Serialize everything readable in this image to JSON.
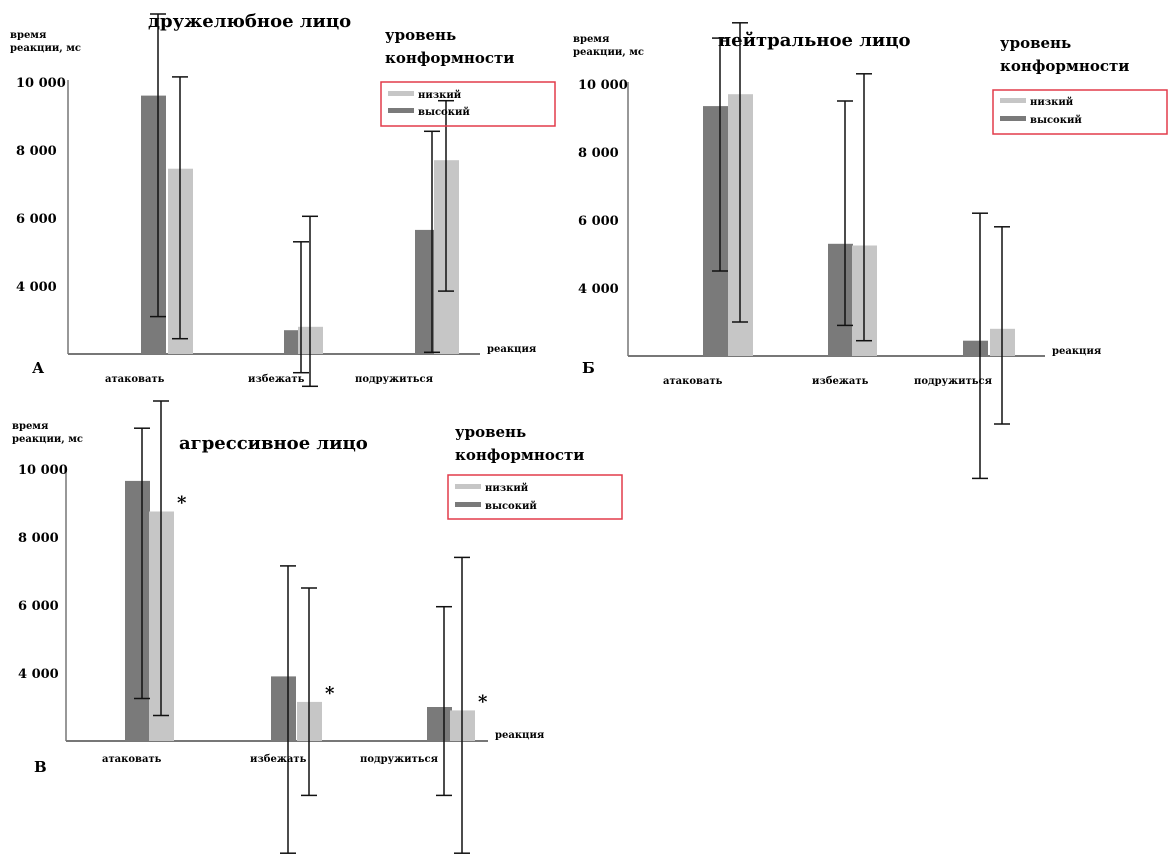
{
  "colors": {
    "high": "#7a7a7a",
    "low": "#c6c6c6",
    "axis": "#777777",
    "error": "#111111",
    "legend_border": "#e23b4a"
  },
  "chart_data": [
    {
      "type": "bar",
      "panel_letter": "А",
      "title": "дружелюбное лицо",
      "ylabel": [
        "время",
        "реакции, мс"
      ],
      "xlabel": "реакция",
      "categories": [
        "атаковать",
        "избежать",
        "подружиться"
      ],
      "yticks": [
        "10 000",
        "8 000",
        "6 000",
        "4 000"
      ],
      "ytick_values": [
        10000,
        8000,
        6000,
        4000
      ],
      "ylim": [
        2000,
        10000
      ],
      "legend": {
        "title": [
          "уровень",
          "конформности"
        ],
        "position": "top-right"
      },
      "series": [
        {
          "name": "высокий",
          "color_key": "high",
          "values": [
            9600,
            2700,
            5650
          ],
          "err_low": [
            3100,
            1450,
            2050
          ],
          "err_high": [
            12000,
            5300,
            8550
          ]
        },
        {
          "name": "низкий",
          "color_key": "low",
          "values": [
            7450,
            2800,
            7700
          ],
          "err_low": [
            2450,
            1050,
            3850
          ],
          "err_high": [
            10150,
            6050,
            9450
          ]
        }
      ],
      "significance": []
    },
    {
      "type": "bar",
      "panel_letter": "Б",
      "title": "нейтральное лицо",
      "ylabel": [
        "время",
        "реакции, мс"
      ],
      "xlabel": "реакция",
      "categories": [
        "атаковать",
        "избежать",
        "подружиться"
      ],
      "yticks": [
        "10 000",
        "8 000",
        "6 000",
        "4 000"
      ],
      "ytick_values": [
        10000,
        8000,
        6000,
        4000
      ],
      "ylim": [
        2000,
        10000
      ],
      "legend": {
        "title": [
          "уровень",
          "конформности"
        ],
        "position": "top-right"
      },
      "series": [
        {
          "name": "высокий",
          "color_key": "high",
          "values": [
            9350,
            5300,
            2450
          ],
          "err_low": [
            4500,
            2900,
            -1600
          ],
          "err_high": [
            11350,
            9500,
            6200
          ]
        },
        {
          "name": "низкий",
          "color_key": "low",
          "values": [
            9700,
            5250,
            2800
          ],
          "err_low": [
            3000,
            2450,
            0
          ],
          "err_high": [
            11800,
            10300,
            5800
          ]
        }
      ],
      "significance": []
    },
    {
      "type": "bar",
      "panel_letter": "В",
      "title": "агрессивное лицо",
      "ylabel": [
        "время",
        "реакции, мс"
      ],
      "xlabel": "реакция",
      "categories": [
        "атаковать",
        "избежать",
        "подружиться"
      ],
      "yticks": [
        "10 000",
        "8 000",
        "6 000",
        "4 000"
      ],
      "ytick_values": [
        10000,
        8000,
        6000,
        4000
      ],
      "ylim": [
        2000,
        10000
      ],
      "legend": {
        "title": [
          "уровень",
          "конформности"
        ],
        "position": "top-right"
      },
      "series": [
        {
          "name": "высокий",
          "color_key": "high",
          "values": [
            9650,
            3900,
            3000
          ],
          "err_low": [
            3250,
            -1300,
            400
          ],
          "err_high": [
            11200,
            7150,
            5950
          ]
        },
        {
          "name": "низкий",
          "color_key": "low",
          "values": [
            8750,
            3150,
            2900
          ],
          "err_low": [
            2750,
            400,
            -1300
          ],
          "err_high": [
            12000,
            6500,
            7400
          ]
        }
      ],
      "significance": [
        "*",
        "*",
        "*"
      ]
    }
  ]
}
